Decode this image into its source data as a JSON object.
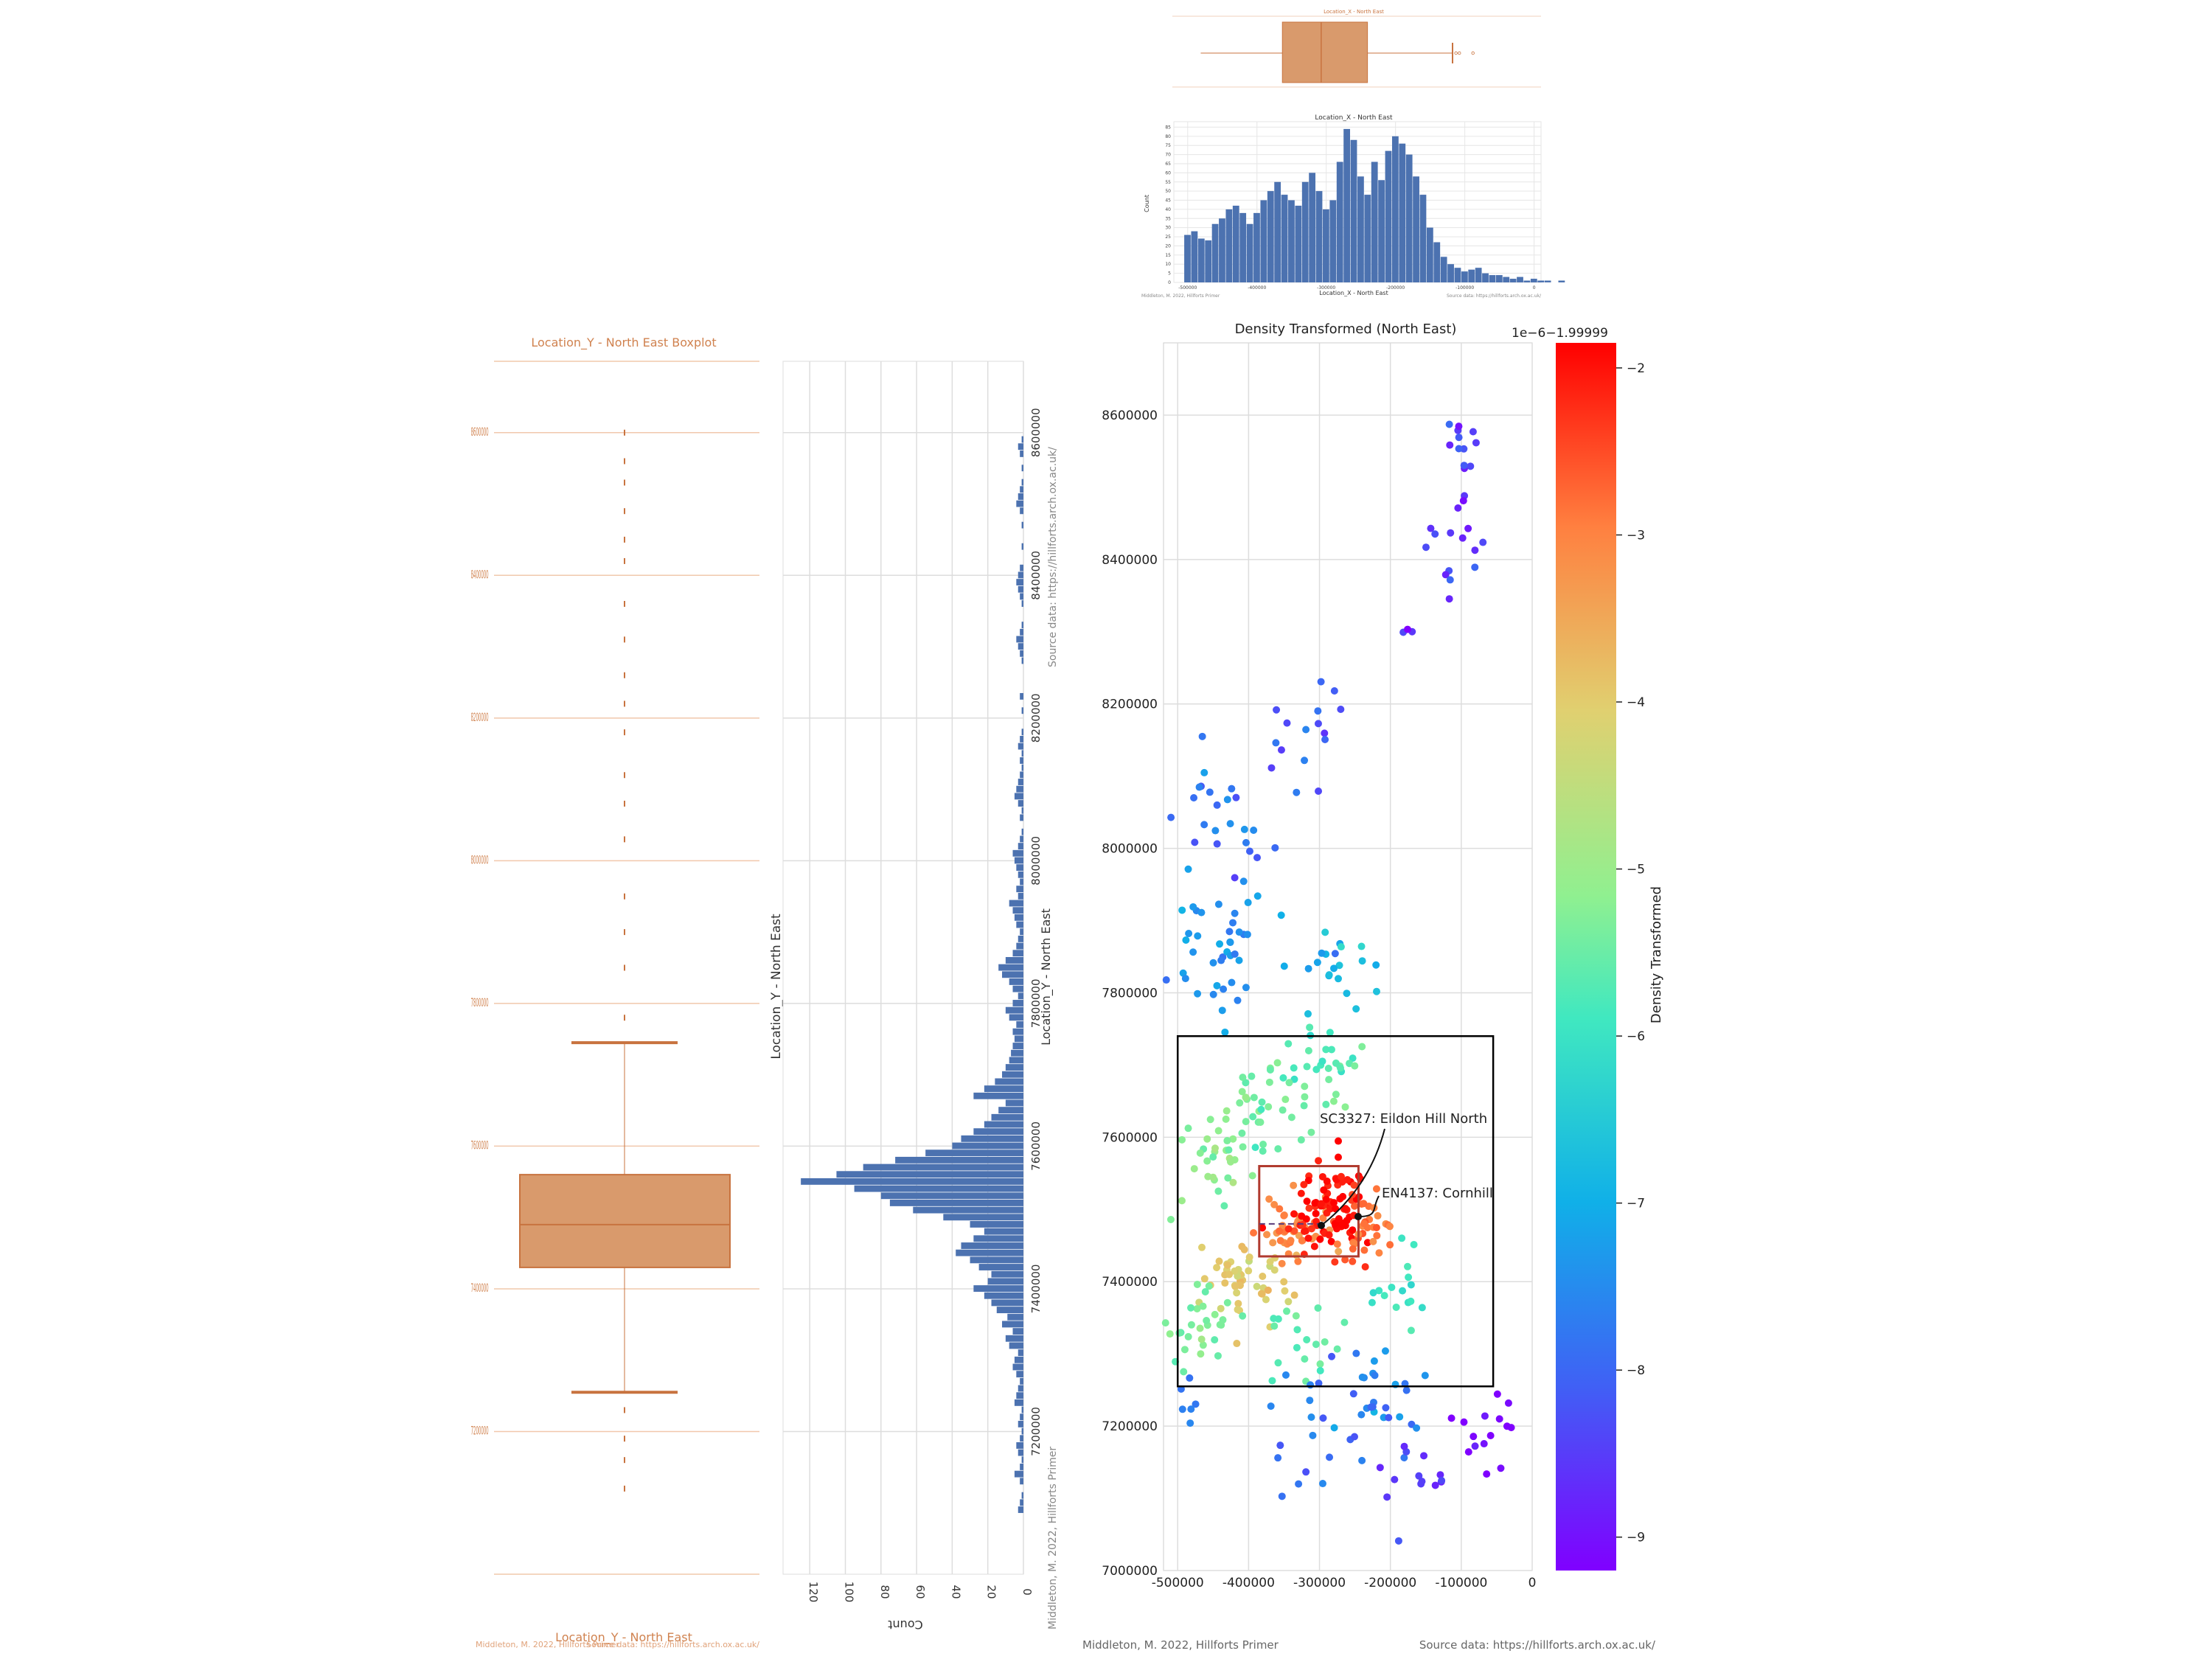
{
  "colors": {
    "box_fill": "#d99a6c",
    "box_edge": "#c8733f",
    "bar_blue": "#4c72b0",
    "grid": "#dddddd",
    "frame_black": "#000000",
    "inset_red": "#b03a2e"
  },
  "top_boxplot": {
    "title": "Location_X - North East",
    "chart_data": {
      "type": "box",
      "stats": {
        "whisker_low": -500000,
        "q1": -380000,
        "median": -323000,
        "q3": -255000,
        "whisker_high": -130000
      },
      "outliers": [
        -125000,
        -120000,
        -100000
      ]
    }
  },
  "top_hist": {
    "title": "Location_X - North East",
    "ylabel": "Count",
    "xlabel": "Location_X - North East",
    "footer_left": "Middleton, M. 2022, Hillforts Primer",
    "footer_right": "Source data: https://hillforts.arch.ox.ac.uk/",
    "chart_data": {
      "type": "bar",
      "x_ticks": [
        "-500000",
        "-400000",
        "-300000",
        "-200000",
        "-100000",
        "0"
      ],
      "y_ticks": [
        "0",
        "5",
        "10",
        "15",
        "20",
        "25",
        "30",
        "35",
        "40",
        "45",
        "50",
        "55",
        "60",
        "65",
        "70",
        "75",
        "80",
        "85"
      ],
      "bin_start": -505000,
      "bin_width": 10000,
      "counts": [
        26,
        28,
        24,
        23,
        32,
        35,
        40,
        42,
        38,
        32,
        38,
        45,
        50,
        55,
        48,
        45,
        42,
        55,
        60,
        50,
        40,
        45,
        66,
        84,
        78,
        58,
        48,
        66,
        56,
        72,
        80,
        76,
        70,
        58,
        48,
        30,
        22,
        14,
        10,
        8,
        6,
        7,
        8,
        5,
        4,
        4,
        3,
        2,
        3,
        1,
        2,
        1,
        1,
        0,
        1
      ]
    }
  },
  "left_boxplot": {
    "title": "Location_Y - North East Boxplot",
    "xlabel": "Location_Y - North East",
    "footer_left": "Middleton, M. 2022, Hillforts Primer",
    "footer_right": "Source data: https://hillforts.arch.ox.ac.uk/",
    "y_ticks": [
      "8600000",
      "8400000",
      "8200000",
      "8000000",
      "7800000",
      "7600000",
      "7400000",
      "7200000"
    ],
    "chart_data": {
      "type": "box",
      "stats": {
        "whisker_low": 7255000,
        "q1": 7430000,
        "median": 7490000,
        "q3": 7560000,
        "whisker_high": 7745000
      },
      "outliers": [
        7120000,
        7160000,
        7190000,
        7230000,
        7780000,
        7850000,
        7900000,
        7950000,
        8030000,
        8080000,
        8120000,
        8180000,
        8220000,
        8260000,
        8310000,
        8360000,
        8420000,
        8450000,
        8490000,
        8530000,
        8560000,
        8600000
      ]
    }
  },
  "side_hist": {
    "title": "Location_Y - North East",
    "xlabel": "Count",
    "ylabel": "Location_Y - North East",
    "footer_left": "Middleton, M. 2022, Hillforts Primer",
    "footer_right": "Source data: https://hillforts.arch.ox.ac.uk/",
    "count_ticks": [
      "0",
      "20",
      "40",
      "60",
      "80",
      "100",
      "120"
    ],
    "y_ticks": [
      "8600000",
      "8400000",
      "8200000",
      "8000000",
      "7800000",
      "7600000",
      "7400000",
      "7200000"
    ],
    "chart_data": {
      "type": "bar",
      "orientation": "horizontal",
      "bin_start": 7085000,
      "bin_width": 10000,
      "counts": [
        3,
        2,
        1,
        0,
        2,
        5,
        2,
        1,
        3,
        4,
        2,
        1,
        3,
        2,
        1,
        5,
        4,
        3,
        2,
        4,
        6,
        5,
        3,
        8,
        10,
        6,
        12,
        9,
        15,
        18,
        22,
        28,
        20,
        18,
        25,
        30,
        38,
        35,
        28,
        22,
        30,
        45,
        62,
        75,
        80,
        95,
        125,
        105,
        90,
        72,
        55,
        40,
        35,
        28,
        22,
        18,
        14,
        10,
        28,
        22,
        16,
        12,
        10,
        8,
        7,
        6,
        5,
        6,
        4,
        8,
        10,
        6,
        3,
        6,
        8,
        12,
        14,
        10,
        6,
        4,
        3,
        2,
        4,
        5,
        6,
        8,
        3,
        4,
        2,
        3,
        4,
        5,
        6,
        3,
        2,
        1,
        0,
        2,
        1,
        3,
        5,
        4,
        3,
        2,
        1,
        2,
        1,
        3,
        2,
        1,
        0,
        0,
        1,
        0,
        2,
        0,
        0,
        0,
        0,
        1,
        2,
        3,
        4,
        2,
        1,
        0,
        0,
        1,
        2,
        3,
        4,
        3,
        2,
        0,
        0,
        1,
        0,
        0,
        1,
        0,
        2,
        4,
        3,
        2,
        1,
        0,
        1,
        0,
        2,
        3,
        1
      ]
    }
  },
  "scatter": {
    "title": "Density Transformed (North East)",
    "footer_left": "Middleton, M. 2022, Hillforts Primer",
    "footer_right": "Source data: https://hillforts.arch.ox.ac.uk/",
    "x_ticks": [
      "-500000",
      "-400000",
      "-300000",
      "-200000",
      "-100000",
      "0"
    ],
    "y_ticks": [
      "8600000",
      "8400000",
      "8200000",
      "8000000",
      "7800000",
      "7600000",
      "7400000",
      "7200000",
      "7000000"
    ],
    "colorbar": {
      "label": "Density Transformed",
      "offset_text": "1e−6−1.99999",
      "ticks": [
        "−2",
        "−3",
        "−4",
        "−5",
        "−6",
        "−7",
        "−8",
        "−9"
      ]
    },
    "annotations": [
      {
        "text": "SC3327: Eildon Hill North",
        "x": -307000,
        "y": 7474000
      },
      {
        "text": "EN4137: Cornhill",
        "x": -250000,
        "y": 7490000
      }
    ],
    "chart_data": {
      "type": "scatter",
      "xlim": [
        -520000,
        0
      ],
      "ylim": [
        7000000,
        8700000
      ],
      "outer_box": {
        "x0": -500000,
        "x1": -55000,
        "y0": 7255000,
        "y1": 7740000
      },
      "inner_box": {
        "x0": -385000,
        "x1": -245000,
        "y0": 7435000,
        "y1": 7560000
      },
      "clusters": [
        {
          "cx": -100000,
          "cy": 8550000,
          "sx": 15000,
          "sy": 30000,
          "n": 14,
          "d": -8.6
        },
        {
          "cx": -110000,
          "cy": 8420000,
          "sx": 20000,
          "sy": 40000,
          "n": 14,
          "d": -8.7
        },
        {
          "cx": -175000,
          "cy": 8300000,
          "sx": 4000,
          "sy": 5000,
          "n": 3,
          "d": -9.0
        },
        {
          "cx": -330000,
          "cy": 8160000,
          "sx": 40000,
          "sy": 40000,
          "n": 16,
          "d": -8.4
        },
        {
          "cx": -440000,
          "cy": 8030000,
          "sx": 40000,
          "sy": 50000,
          "n": 24,
          "d": -8.2
        },
        {
          "cx": -440000,
          "cy": 7860000,
          "sx": 35000,
          "sy": 50000,
          "n": 40,
          "d": -7.8
        },
        {
          "cx": -280000,
          "cy": 7840000,
          "sx": 35000,
          "sy": 30000,
          "n": 22,
          "d": -7.4
        },
        {
          "cx": -290000,
          "cy": 7700000,
          "sx": 30000,
          "sy": 25000,
          "n": 20,
          "d": -6.4
        },
        {
          "cx": -360000,
          "cy": 7650000,
          "sx": 50000,
          "sy": 30000,
          "n": 46,
          "d": -5.8
        },
        {
          "cx": -450000,
          "cy": 7560000,
          "sx": 30000,
          "sy": 40000,
          "n": 30,
          "d": -5.6
        },
        {
          "cx": -330000,
          "cy": 7470000,
          "sx": 30000,
          "sy": 30000,
          "n": 45,
          "d": -3.4
        },
        {
          "cx": -280000,
          "cy": 7500000,
          "sx": 25000,
          "sy": 30000,
          "n": 90,
          "d": -2.2
        },
        {
          "cx": -230000,
          "cy": 7470000,
          "sx": 20000,
          "sy": 25000,
          "n": 30,
          "d": -3.2
        },
        {
          "cx": -410000,
          "cy": 7400000,
          "sx": 35000,
          "sy": 30000,
          "n": 50,
          "d": -4.2
        },
        {
          "cx": -470000,
          "cy": 7340000,
          "sx": 25000,
          "sy": 30000,
          "n": 30,
          "d": -5.8
        },
        {
          "cx": -330000,
          "cy": 7320000,
          "sx": 30000,
          "sy": 30000,
          "n": 20,
          "d": -6.0
        },
        {
          "cx": -200000,
          "cy": 7390000,
          "sx": 25000,
          "sy": 30000,
          "n": 16,
          "d": -6.6
        },
        {
          "cx": -240000,
          "cy": 7230000,
          "sx": 40000,
          "sy": 40000,
          "n": 30,
          "d": -8.0
        },
        {
          "cx": -320000,
          "cy": 7200000,
          "sx": 30000,
          "sy": 50000,
          "n": 14,
          "d": -8.3
        },
        {
          "cx": -170000,
          "cy": 7130000,
          "sx": 40000,
          "sy": 40000,
          "n": 16,
          "d": -8.8
        },
        {
          "cx": -70000,
          "cy": 7180000,
          "sx": 25000,
          "sy": 30000,
          "n": 14,
          "d": -9.1
        },
        {
          "cx": -490000,
          "cy": 7230000,
          "sx": 8000,
          "sy": 20000,
          "n": 6,
          "d": -8.0
        }
      ]
    }
  }
}
